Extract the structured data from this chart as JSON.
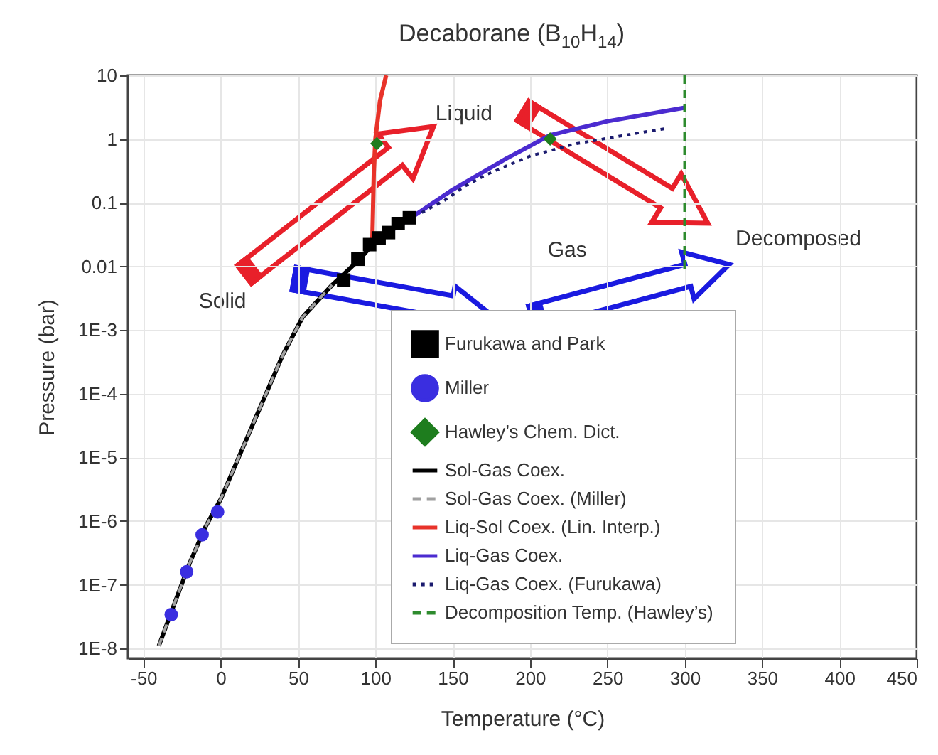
{
  "chart_data": {
    "type": "line",
    "title": "Decaborane (B$_{10}$H$_{14}$)",
    "xlabel": "Temperature (°C)",
    "ylabel": "Pressure (bar)",
    "xlim": [
      -60,
      450
    ],
    "xticks": [
      -50,
      0,
      50,
      100,
      150,
      200,
      250,
      300,
      350,
      400,
      450
    ],
    "ylim": [
      7e-09,
      10
    ],
    "log": true,
    "yticks": [
      10,
      1,
      0.1,
      0.01,
      {
        "value": 0.001,
        "label": "1E-3"
      },
      {
        "value": 0.0001,
        "label": "1E-4"
      },
      {
        "value": 1e-05,
        "label": "1E-5"
      },
      {
        "value": 1e-06,
        "label": "1E-6"
      },
      {
        "value": 1e-07,
        "label": "1E-7"
      },
      {
        "value": 1e-08,
        "label": "1E-8"
      }
    ],
    "grid": true,
    "legend": "bottom right",
    "annotations": [
      "Liquid",
      "Solid",
      "Gas",
      "Decomposed"
    ],
    "series": [
      {
        "name": "Furukawa and Park",
        "type": "scatter",
        "marker": "square",
        "color": "#000000",
        "x": [
          79.5,
          88.7,
          96.3,
          102.4,
          108.5,
          114.7,
          122
        ],
        "values": [
          0.0061,
          0.013,
          0.022,
          0.028,
          0.034,
          0.047,
          0.058
        ]
      },
      {
        "name": "Miller",
        "type": "scatter",
        "marker": "circle",
        "color": "#3a2ee0",
        "x": [
          -32,
          -22,
          -12,
          -2
        ],
        "values": [
          3.4e-08,
          1.6e-07,
          6.1e-07,
          1.4e-06
        ]
      },
      {
        "name": "Hawley’s Chem. Dict.",
        "type": "scatter",
        "marker": "diamond",
        "color": "#1e7d1e",
        "x": [
          101,
          213
        ],
        "values": [
          0.85,
          1.0
        ]
      },
      {
        "name": "Sol-Gas Coex.",
        "type": "line",
        "line_style": "solid",
        "color": "#000000",
        "x": [
          -40,
          -30,
          -20,
          -10,
          0,
          23,
          40,
          53,
          72,
          90,
          100
        ],
        "values": [
          1.1e-08,
          5e-08,
          2.2e-07,
          8e-07,
          2.2e-06,
          4.4e-05,
          0.0004,
          0.0016,
          0.0051,
          0.013,
          0.025
        ]
      },
      {
        "name": "Sol-Gas Coex. (Miller)",
        "type": "line",
        "line_style": "dashed",
        "color": "#a0a0a0",
        "x": [
          -40,
          -30,
          -20,
          -10,
          0,
          23,
          40,
          53,
          72
        ],
        "values": [
          1.1e-08,
          5e-08,
          2.2e-07,
          8e-07,
          2.2e-06,
          4.4e-05,
          0.0004,
          0.0016,
          0.0051
        ]
      },
      {
        "name": "Liq-Sol Coex. (Lin. Interp.)",
        "type": "line",
        "line_style": "solid",
        "color": "#e8332a",
        "x": [
          98,
          99,
          100,
          103,
          107
        ],
        "values": [
          0.024,
          0.3,
          1,
          4,
          10
        ]
      },
      {
        "name": "Liq-Gas Coex.",
        "type": "line",
        "line_style": "solid",
        "color": "#4b2bd0",
        "x": [
          100,
          124,
          150,
          185,
          213,
          250,
          300
        ],
        "values": [
          0.025,
          0.06,
          0.16,
          0.5,
          1.15,
          1.9,
          3.1
        ]
      },
      {
        "name": "Liq-Gas Coex. (Furukawa)",
        "type": "line",
        "line_style": "dotted",
        "color": "#1a1a6e",
        "x": [
          130,
          145,
          157.5,
          171,
          185,
          200,
          228,
          257,
          272,
          287
        ],
        "values": [
          0.07,
          0.11,
          0.18,
          0.27,
          0.38,
          0.54,
          0.83,
          1.1,
          1.27,
          1.45
        ]
      },
      {
        "name": "Decomposition Temp. (Hawley’s)",
        "type": "line",
        "line_style": "dashed",
        "color": "#2e8b2e",
        "x": [
          300,
          300
        ],
        "values": [
          10,
          0.008
        ]
      }
    ]
  }
}
